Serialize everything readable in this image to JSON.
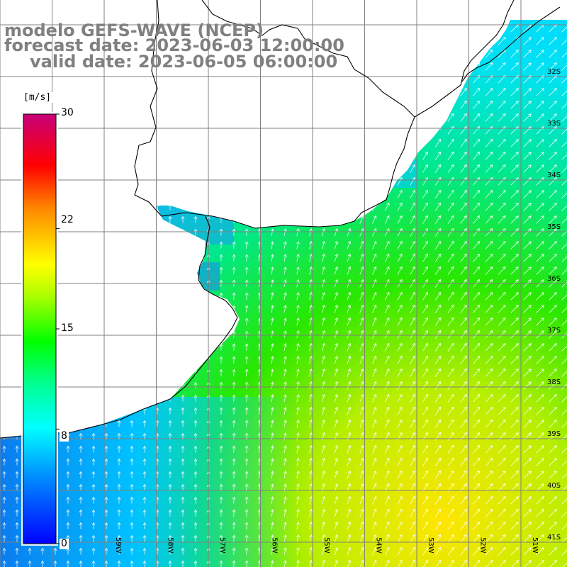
{
  "title": {
    "line1": "modelo GEFS-WAVE (NCEP)",
    "line2": "forecast date: 2023-06-03 12:00:00",
    "line3": "valid date: 2023-06-05 06:00:00"
  },
  "colorbar": {
    "unit": "[m/s]",
    "ticks": [
      "30",
      "22",
      "15",
      "8",
      "0"
    ],
    "tick_values": [
      30,
      22,
      15,
      8,
      0
    ],
    "min": 0,
    "max": 30
  },
  "map": {
    "lat_labels": [
      "32S",
      "33S",
      "34S",
      "35S",
      "36S",
      "37S",
      "38S",
      "39S",
      "40S",
      "41S"
    ],
    "lon_labels": [
      "59W",
      "58W",
      "57W",
      "56W",
      "55W",
      "54W",
      "53W",
      "52W",
      "51W"
    ],
    "land_color": "#ffffff",
    "grid_color": "#808080",
    "coast_color": "#000000",
    "arrow_color": "#ffffff",
    "field": "wind speed"
  }
}
